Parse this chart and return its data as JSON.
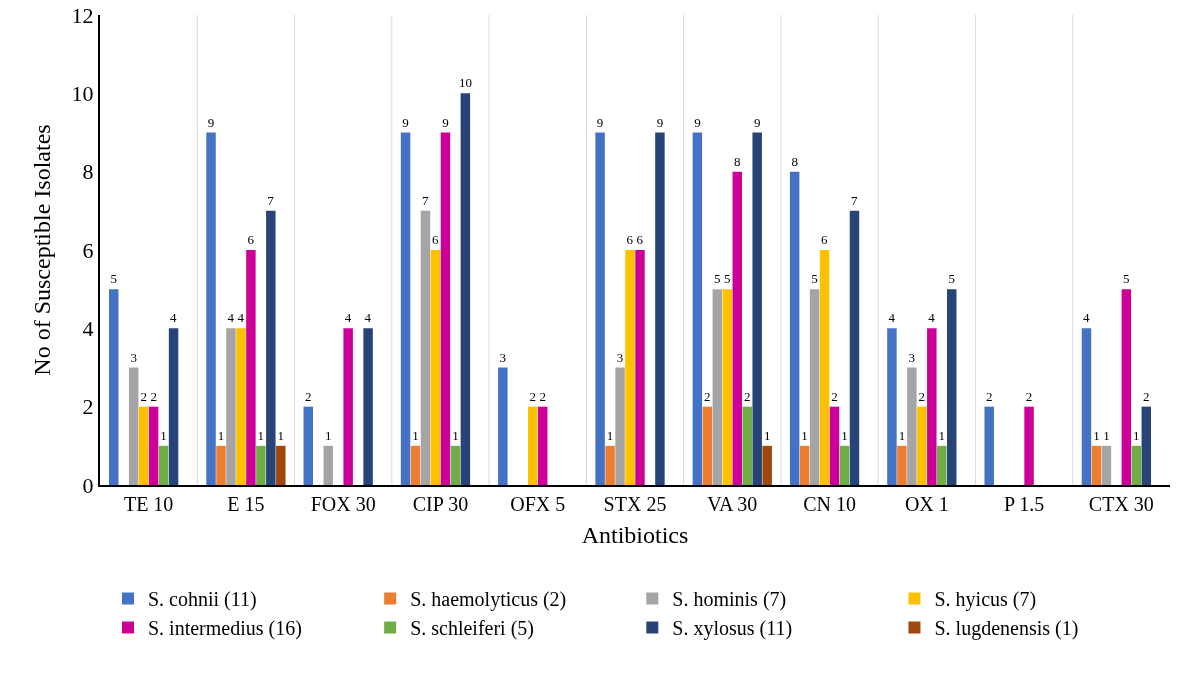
{
  "chart_data": {
    "type": "bar",
    "xlabel": "Antibiotics",
    "ylabel": "No of Susceptible Isolates",
    "categories": [
      "TE 10",
      "E 15",
      "FOX 30",
      "CIP 30",
      "OFX 5",
      "STX 25",
      "VA 30",
      "CN 10",
      "OX 1",
      "P 1.5",
      "CTX 30"
    ],
    "series": [
      {
        "name": "S. cohnii (11)",
        "color": "#4472c4",
        "values": [
          5,
          9,
          2,
          9,
          3,
          9,
          9,
          8,
          4,
          2,
          4
        ],
        "value_labels": [
          "5",
          "9",
          "2",
          "9",
          "3",
          "9",
          "9",
          "8",
          "4",
          "2",
          "4"
        ]
      },
      {
        "name": "S. haemolyticus (2)",
        "color": "#ed7d31",
        "values": [
          0,
          1,
          0,
          1,
          0,
          1,
          2,
          1,
          1,
          0,
          1
        ],
        "value_labels": [
          null,
          "1",
          null,
          "1",
          null,
          "1",
          "2",
          "1",
          "1",
          null,
          "1"
        ]
      },
      {
        "name": "S. hominis (7)",
        "color": "#a5a5a5",
        "values": [
          3,
          4,
          1,
          7,
          0,
          3,
          5,
          5,
          3,
          0,
          1
        ],
        "value_labels": [
          "3",
          "4",
          "1",
          "7",
          null,
          "3",
          "5",
          "5",
          "3",
          null,
          "1"
        ]
      },
      {
        "name": "S. hyicus (7)",
        "color": "#ffc000",
        "values": [
          2,
          4,
          0,
          6,
          2,
          6,
          5,
          6,
          2,
          0,
          0
        ],
        "value_labels": [
          "2",
          "4",
          null,
          "6",
          "2",
          "6",
          "5",
          "6",
          "2",
          null,
          null
        ]
      },
      {
        "name": "S. intermedius (16)",
        "color": "#cc0099",
        "values": [
          2,
          6,
          4,
          9,
          2,
          6,
          8,
          2,
          4,
          2,
          5
        ],
        "value_labels": [
          "2",
          "6",
          "4",
          "9",
          "2",
          "6",
          "8",
          "2",
          "4",
          "2",
          "5"
        ]
      },
      {
        "name": "S. schleiferi (5)",
        "color": "#70ad47",
        "values": [
          1,
          1,
          0,
          1,
          0,
          0,
          2,
          1,
          1,
          0,
          1
        ],
        "value_labels": [
          "1",
          "1",
          null,
          "1",
          null,
          null,
          "2",
          "1",
          "1",
          null,
          "1"
        ]
      },
      {
        "name": "S. xylosus (11)",
        "color": "#264478",
        "values": [
          4,
          7,
          4,
          10,
          0,
          9,
          9,
          7,
          5,
          0,
          2
        ],
        "value_labels": [
          "4",
          "7",
          "4",
          "10",
          null,
          "9",
          "9",
          "7",
          "5",
          null,
          "2"
        ]
      },
      {
        "name": "S. lugdenensis (1)",
        "color": "#9e480e",
        "values": [
          0,
          1,
          0,
          0,
          0,
          0,
          1,
          0,
          0,
          0,
          0
        ],
        "value_labels": [
          null,
          "1",
          null,
          null,
          null,
          null,
          "1",
          null,
          null,
          null,
          null
        ]
      }
    ],
    "ylim": [
      0,
      12
    ],
    "yticks": [
      0,
      2,
      4,
      6,
      8,
      10,
      12
    ],
    "grid": "x",
    "legend": "bottom"
  }
}
